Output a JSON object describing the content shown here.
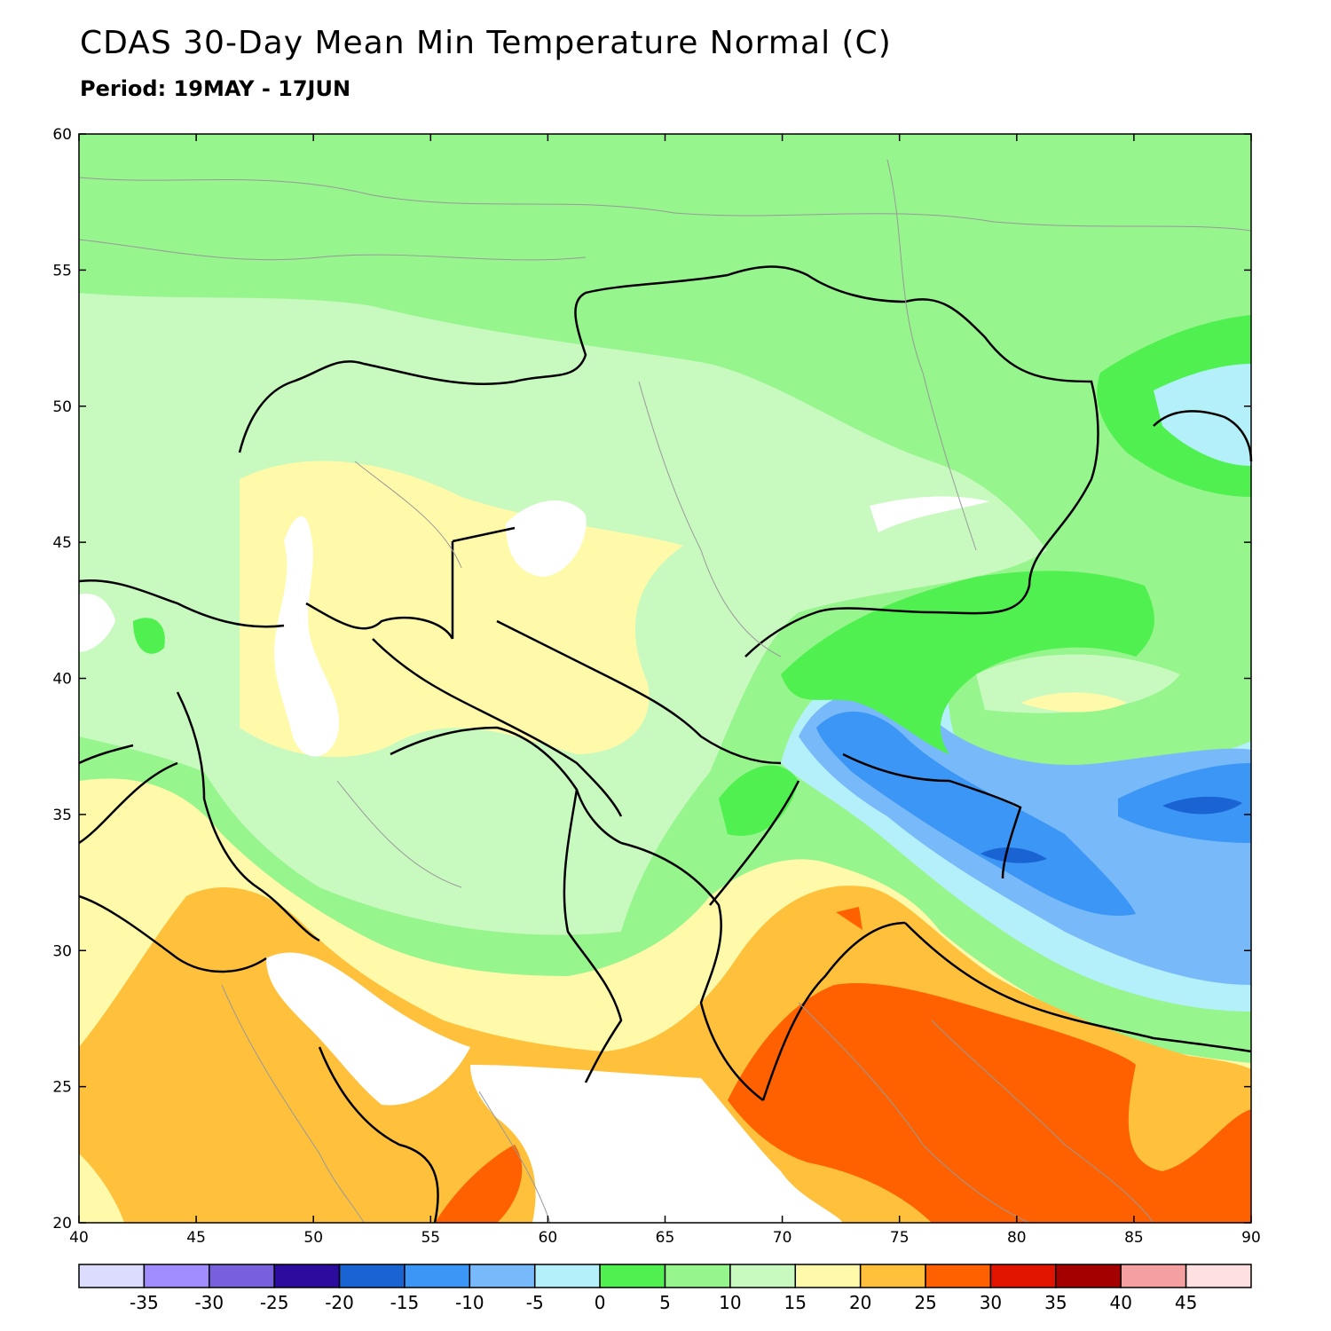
{
  "title": "CDAS 30-Day Mean Min Temperature Normal (C)",
  "subtitle": "Period: 19MAY - 17JUN",
  "map": {
    "lon_range": [
      40,
      90
    ],
    "lat_range": [
      20,
      60
    ],
    "lon_ticks": [
      "40",
      "45",
      "50",
      "55",
      "60",
      "65",
      "70",
      "75",
      "80",
      "85",
      "90"
    ],
    "lat_ticks": [
      "20",
      "25",
      "30",
      "35",
      "40",
      "45",
      "50",
      "55",
      "60"
    ]
  },
  "legend": {
    "colors": [
      "#dcdcff",
      "#a08cff",
      "#7860dc",
      "#2c0c9c",
      "#1964d2",
      "#3c96f5",
      "#78b9fa",
      "#b4f0fa",
      "#50f050",
      "#96f58c",
      "#c8fac0",
      "#fffaaa",
      "#ffc03c",
      "#ff6000",
      "#e11400",
      "#a50000",
      "#f5a0a0",
      "#ffe0e0"
    ],
    "labels": [
      "-35",
      "-30",
      "-25",
      "-20",
      "-15",
      "-10",
      "-5",
      "0",
      "5",
      "10",
      "15",
      "20",
      "25",
      "30",
      "35",
      "40",
      "45"
    ]
  }
}
